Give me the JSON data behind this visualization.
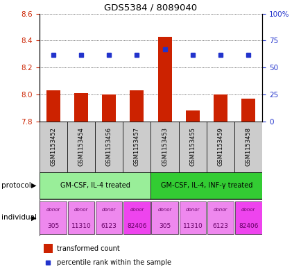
{
  "title": "GDS5384 / 8089040",
  "samples": [
    "GSM1153452",
    "GSM1153454",
    "GSM1153456",
    "GSM1153457",
    "GSM1153453",
    "GSM1153455",
    "GSM1153459",
    "GSM1153458"
  ],
  "bar_values": [
    8.03,
    8.01,
    8.0,
    8.03,
    8.43,
    7.88,
    8.0,
    7.97
  ],
  "bar_base": 7.8,
  "percentile_values": [
    62,
    62,
    62,
    62,
    67,
    62,
    62,
    62
  ],
  "ylim_left": [
    7.8,
    8.6
  ],
  "ylim_right": [
    0,
    100
  ],
  "yticks_left": [
    7.8,
    8.0,
    8.2,
    8.4,
    8.6
  ],
  "yticks_right": [
    0,
    25,
    50,
    75,
    100
  ],
  "yticklabels_right": [
    "0",
    "25",
    "50",
    "75",
    "100%"
  ],
  "bar_color": "#cc2200",
  "dot_color": "#2233cc",
  "protocols": [
    {
      "label": "GM-CSF, IL-4 treated",
      "start": 0,
      "end": 4,
      "color": "#99ee99"
    },
    {
      "label": "GM-CSF, IL-4, INF-γ treated",
      "start": 4,
      "end": 8,
      "color": "#33cc33"
    }
  ],
  "donors": [
    "305",
    "11310",
    "6123",
    "82406",
    "305",
    "11310",
    "6123",
    "82406"
  ],
  "donor_colors": [
    "#ee88ee",
    "#ee88ee",
    "#ee88ee",
    "#ee44ee",
    "#ee88ee",
    "#ee88ee",
    "#ee88ee",
    "#ee44ee"
  ],
  "protocol_label": "protocol",
  "individual_label": "individual",
  "legend_bar_label": "transformed count",
  "legend_dot_label": "percentile rank within the sample",
  "tick_bg_color": "#cccccc",
  "fig_width": 4.35,
  "fig_height": 3.93
}
